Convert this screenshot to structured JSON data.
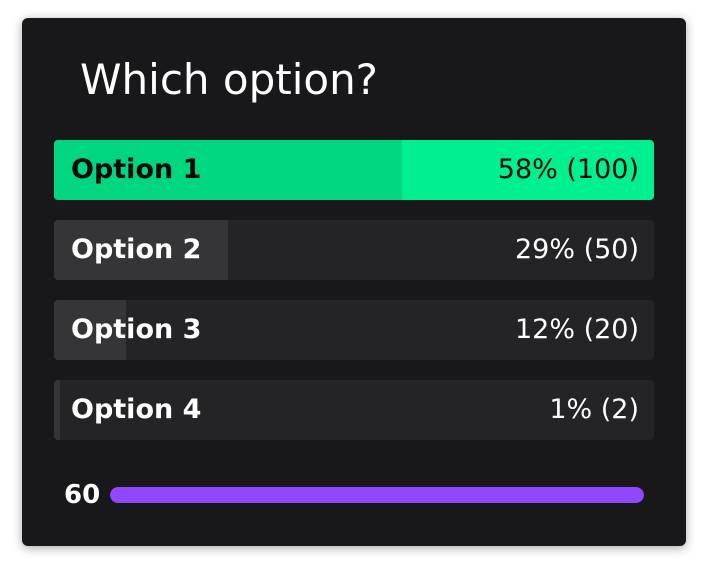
{
  "poll": {
    "title": "Which option?",
    "options": [
      {
        "label": "Option 1",
        "result": "58% (100)",
        "percent": 58,
        "winner": true
      },
      {
        "label": "Option 2",
        "result": "29% (50)",
        "percent": 29,
        "winner": false
      },
      {
        "label": "Option 3",
        "result": "12% (20)",
        "percent": 12,
        "winner": false
      },
      {
        "label": "Option 4",
        "result": "1% (2)",
        "percent": 1,
        "winner": false
      }
    ]
  },
  "timer": {
    "count": "60",
    "progress": 1.0
  },
  "colors": {
    "card_background": "#18181a",
    "winner_accent": "#00f08f",
    "winner_fill": "#00d67f",
    "option_background": "#242426",
    "option_fill": "#353537",
    "timer_bar": "#9147ff"
  }
}
